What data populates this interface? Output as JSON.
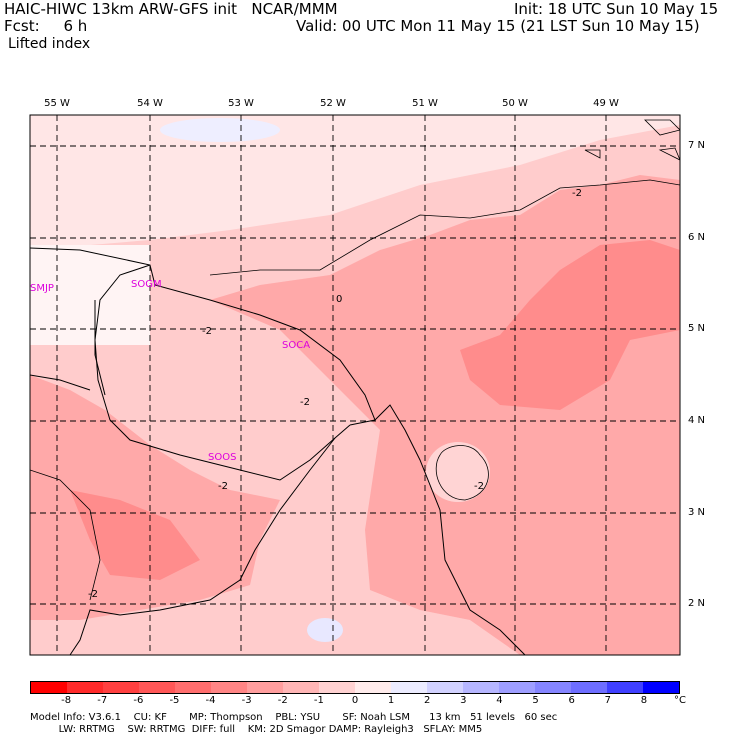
{
  "header": {
    "title": "HAIC-HIWC 13km ARW-GFS init   NCAR/MMM",
    "init": "Init: 18 UTC Sun 10 May 15",
    "fcst": "Fcst:     6 h",
    "valid": "Valid: 00 UTC Mon 11 May 15 (21 LST Sun 10 May 15)",
    "field": "Lifted index"
  },
  "axes": {
    "lon_labels": [
      "55 W",
      "54 W",
      "53 W",
      "52 W",
      "51 W",
      "50 W",
      "49 W"
    ],
    "lat_labels": [
      "7 N",
      "6 N",
      "5 N",
      "4 N",
      "3 N",
      "2 N"
    ]
  },
  "stations": [
    "SMJP",
    "SOGM",
    "SOCA",
    "SOOS"
  ],
  "contour_labels": [
    "-2",
    "-2",
    "-2",
    "-2",
    "-2",
    "-2",
    "0"
  ],
  "colorbar": {
    "labels": [
      "-8",
      "-7",
      "-6",
      "-5",
      "-4",
      "-3",
      "-2",
      "-1",
      "0",
      "1",
      "2",
      "3",
      "4",
      "5",
      "6",
      "7",
      "8"
    ],
    "unit": "°C",
    "colors": [
      "#ff0000",
      "#ff2a2a",
      "#ff4040",
      "#ff5757",
      "#ff6e6e",
      "#ff8585",
      "#ff9e9e",
      "#ffb6b6",
      "#ffd2d2",
      "#ffecec",
      "#ececff",
      "#d2d2ff",
      "#b6b6ff",
      "#9e9eff",
      "#8585ff",
      "#6e6eff",
      "#4040ff",
      "#0000ff"
    ]
  },
  "footer": {
    "line1": "Model Info: V3.6.1    CU: KF       MP: Thompson    PBL: YSU       SF: Noah LSM      13 km   51 levels   60 sec",
    "line2": "         LW: RRTMG    SW: RRTMG  DIFF: full    KM: 2D Smagor DAMP: Rayleigh3   SFLAY: MM5"
  }
}
